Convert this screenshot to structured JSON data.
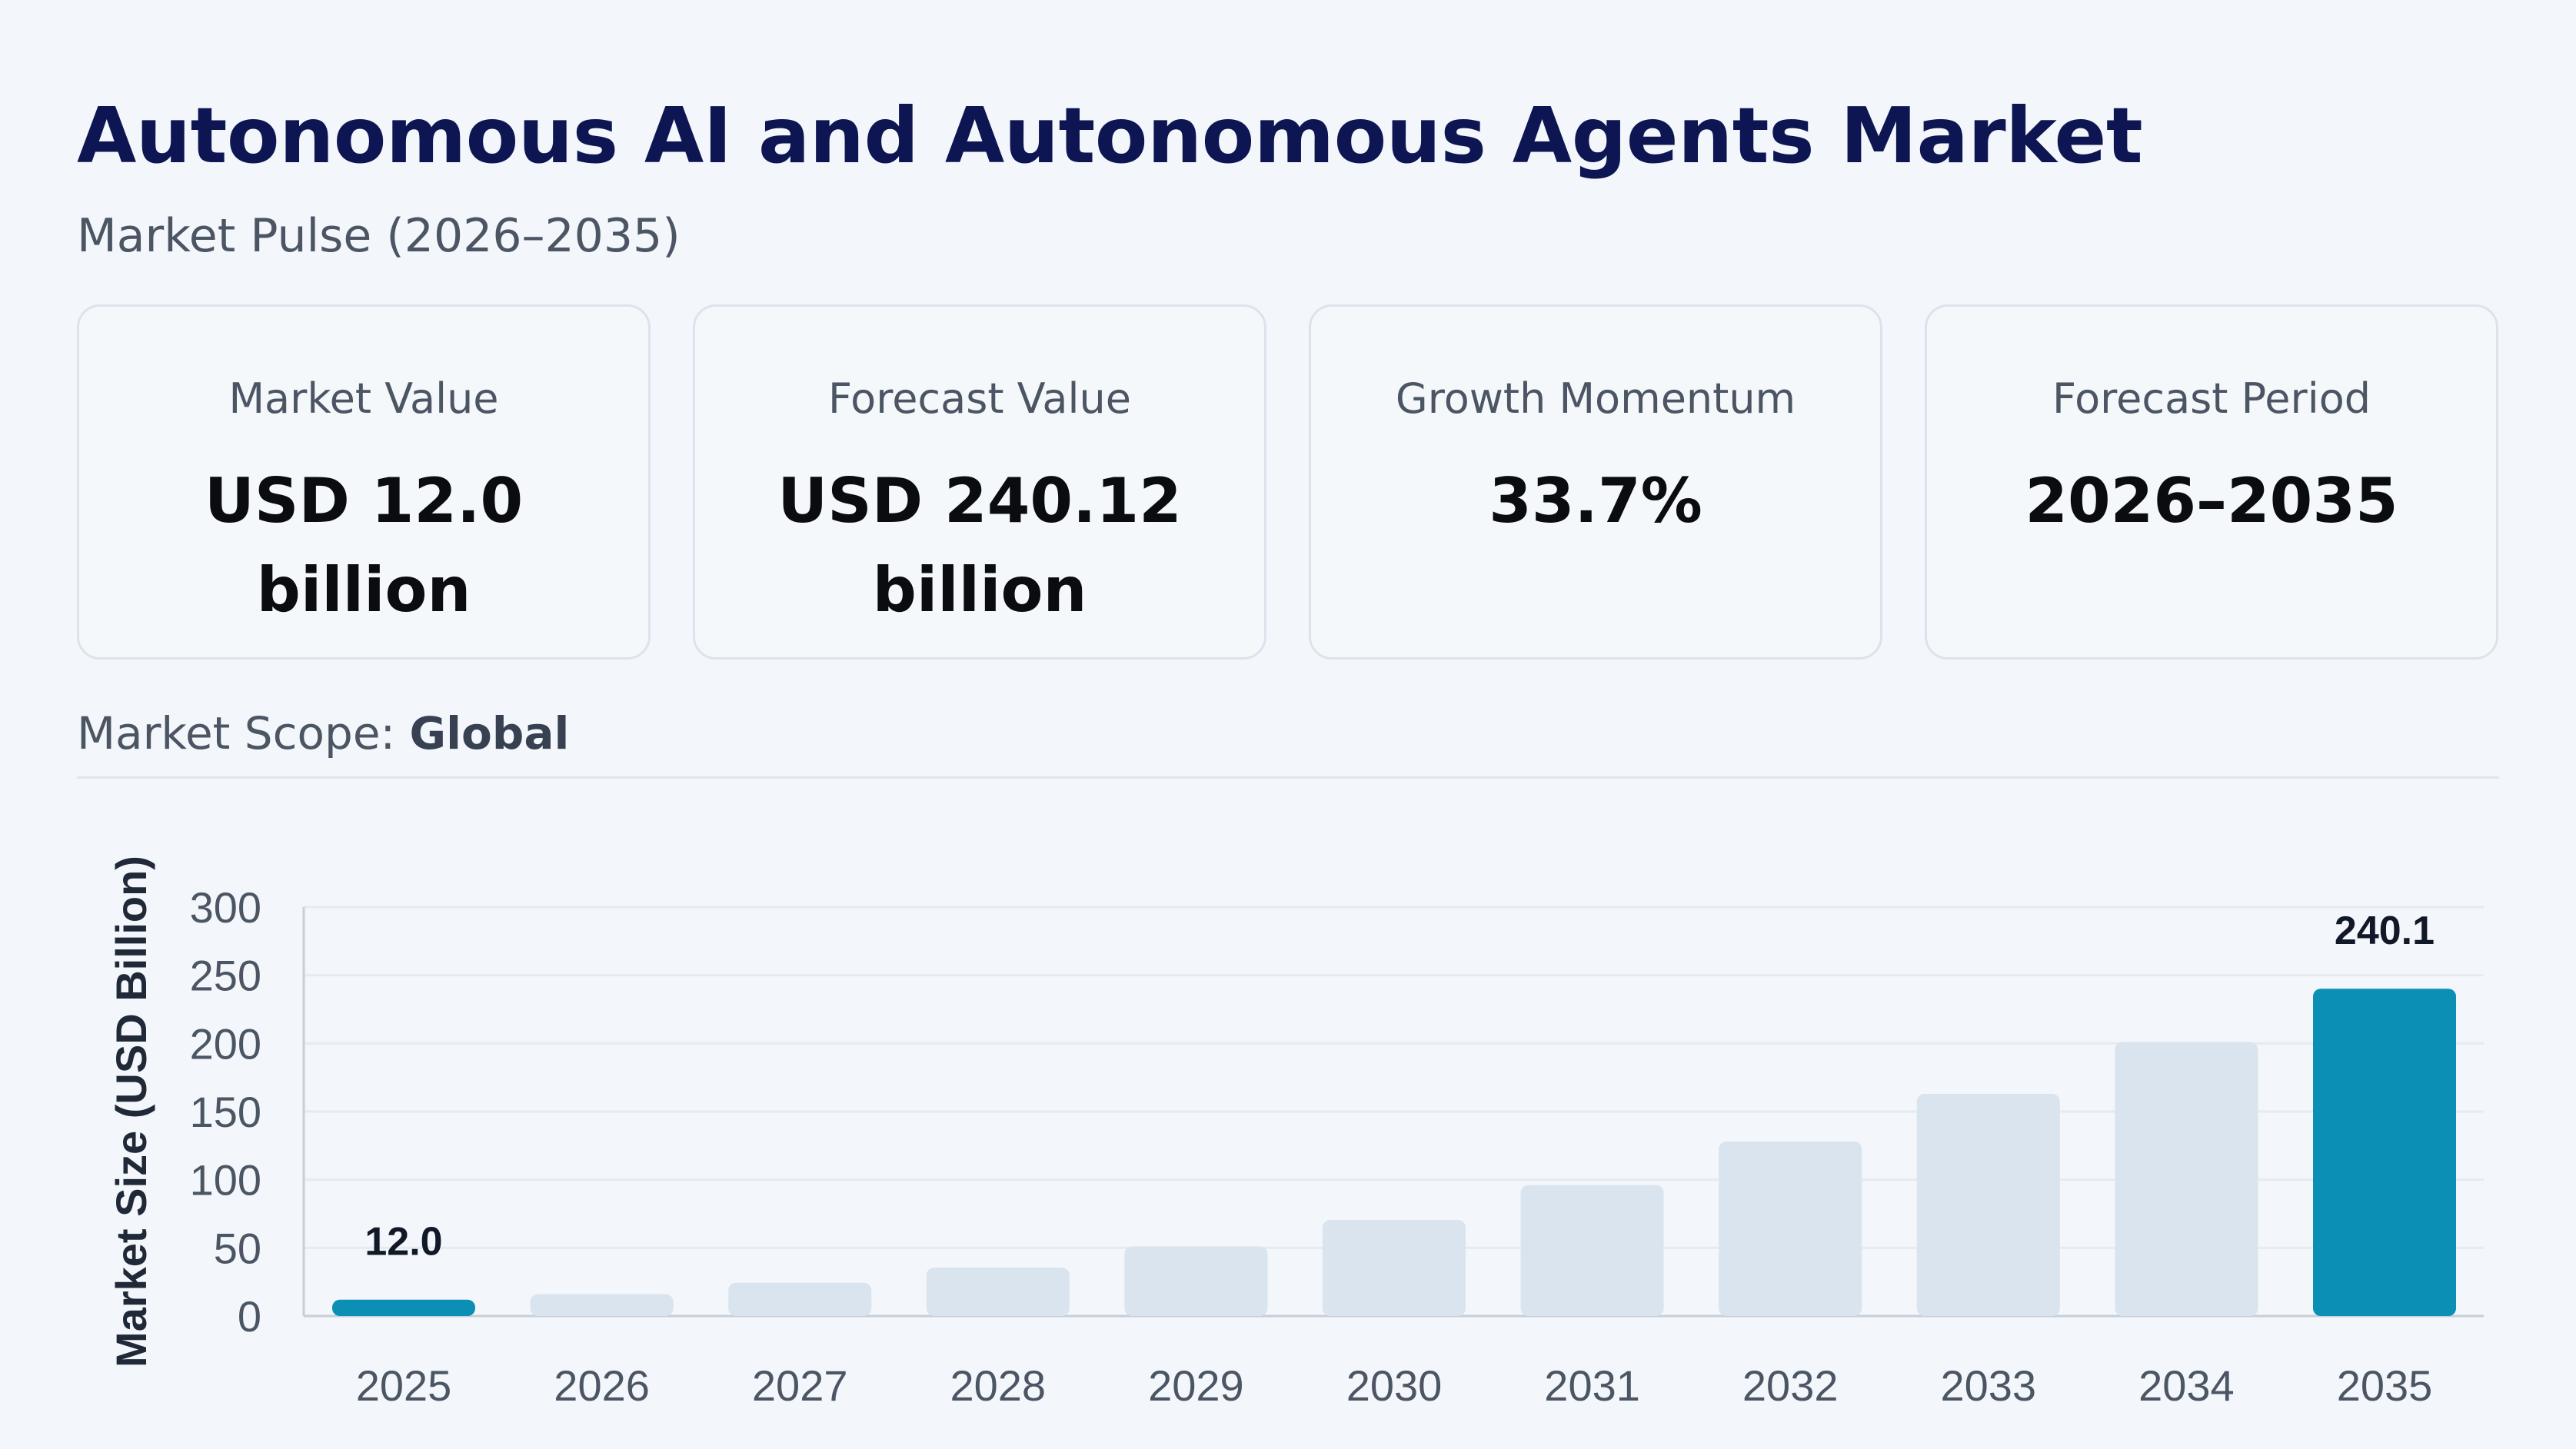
{
  "header": {
    "title": "Autonomous AI and Autonomous Agents Market",
    "subtitle": "Market Pulse (2026–2035)"
  },
  "cards": [
    {
      "label": "Market Value",
      "value": "USD 12.0 billion"
    },
    {
      "label": "Forecast Value",
      "value": "USD 240.12 billion"
    },
    {
      "label": "Growth Momentum",
      "value": "33.7%"
    },
    {
      "label": "Forecast Period",
      "value": "2026–2035"
    }
  ],
  "scope": {
    "label": "Market Scope:",
    "value": "Global"
  },
  "colors": {
    "accent": "#0b8fb5",
    "bar_muted": "#d9e4ee",
    "title": "#0d1652",
    "grid": "#e6ebf1"
  },
  "chart_data": {
    "type": "bar",
    "categories": [
      "2025",
      "2026",
      "2027",
      "2028",
      "2029",
      "2030",
      "2031",
      "2032",
      "2033",
      "2034",
      "2035"
    ],
    "values": [
      12.0,
      16.0,
      24.4,
      35.5,
      51.0,
      70.5,
      96.0,
      128.0,
      163.0,
      201.0,
      240.1
    ],
    "highlighted": [
      "2025",
      "2035"
    ],
    "data_labels": [
      {
        "category": "2025",
        "text": "12.0"
      },
      {
        "category": "2035",
        "text": "240.1"
      }
    ],
    "ylabel": "Market Size (USD Billion)",
    "xlabel": "",
    "ylim": [
      0,
      300
    ],
    "yticks": [
      0,
      50,
      100,
      150,
      200,
      250,
      300
    ],
    "grid": true
  }
}
